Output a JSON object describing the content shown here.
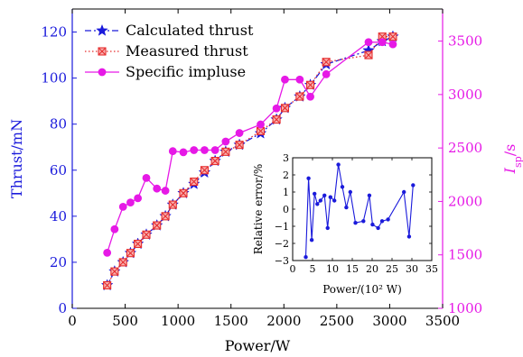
{
  "chart_data": [
    {
      "type": "line",
      "x_axis": {
        "label": "Power/W",
        "range": [
          0,
          3500
        ],
        "ticks": [
          0,
          500,
          1000,
          1500,
          2000,
          2500,
          3000,
          3500
        ]
      },
      "y_axis_left": {
        "label": "Thrust/mN",
        "range": [
          0,
          130
        ],
        "ticks": [
          0,
          20,
          40,
          60,
          80,
          100,
          120
        ],
        "color": "#1a1adb"
      },
      "y_axis_right": {
        "label_main": "I",
        "label_sub": "sp",
        "label_unit": "/s",
        "range": [
          1000,
          3800
        ],
        "ticks": [
          1000,
          1500,
          2000,
          2500,
          3000,
          3500
        ],
        "color": "#e619e6"
      },
      "legend": {
        "position": "top-left",
        "entries": [
          "Calculated thrust",
          "Measured thrust",
          "Specific impluse"
        ]
      },
      "series": [
        {
          "name": "Calculated thrust",
          "axis": "left",
          "color": "#1a1adb",
          "marker": "star",
          "line": "dashdot",
          "x": [
            330,
            400,
            480,
            550,
            620,
            700,
            800,
            880,
            950,
            1050,
            1150,
            1250,
            1350,
            1450,
            1580,
            1780,
            1930,
            2010,
            2150,
            2250,
            2400,
            2800,
            2930,
            3030
          ],
          "y": [
            10,
            16,
            20,
            24,
            28,
            32,
            36,
            40,
            45,
            50,
            54,
            59,
            64,
            68,
            71,
            76,
            82,
            87,
            92,
            97,
            106,
            112,
            116,
            118
          ]
        },
        {
          "name": "Measured thrust",
          "axis": "left",
          "color": "#e62e2e",
          "marker": "boxed-x",
          "line": "dotted",
          "x": [
            330,
            400,
            480,
            550,
            620,
            700,
            800,
            880,
            950,
            1050,
            1150,
            1250,
            1350,
            1450,
            1580,
            1780,
            1930,
            2010,
            2150,
            2250,
            2400,
            2800,
            2930,
            3030
          ],
          "y": [
            10,
            16,
            20,
            24,
            28,
            32,
            36,
            40,
            45,
            50,
            55,
            60,
            64,
            68,
            71,
            77,
            82,
            87,
            92,
            97,
            107,
            110,
            118,
            118
          ]
        },
        {
          "name": "Specific impluse",
          "axis": "right",
          "color": "#e619e6",
          "marker": "circle",
          "line": "solid",
          "x": [
            330,
            400,
            480,
            550,
            620,
            700,
            800,
            880,
            950,
            1050,
            1150,
            1250,
            1350,
            1450,
            1580,
            1780,
            1930,
            2010,
            2150,
            2250,
            2400,
            2800,
            2930,
            3030
          ],
          "y": [
            1520,
            1740,
            1950,
            1990,
            2030,
            2220,
            2120,
            2100,
            2470,
            2460,
            2480,
            2480,
            2480,
            2560,
            2640,
            2720,
            2870,
            3140,
            3140,
            2980,
            3190,
            3490,
            3490,
            3470
          ]
        }
      ]
    },
    {
      "type": "line",
      "inset": true,
      "x_axis": {
        "label": "Power/(10² W)",
        "range": [
          0,
          35
        ],
        "ticks": [
          0,
          5,
          10,
          15,
          20,
          25,
          30,
          35
        ]
      },
      "y_axis": {
        "label": "Relative error/%",
        "range": [
          -3,
          3
        ],
        "ticks": [
          -3,
          -2,
          -1,
          0,
          1,
          2,
          3
        ]
      },
      "series": [
        {
          "color": "#1a1adb",
          "marker": "circle",
          "line": "solid",
          "x": [
            3.3,
            4.0,
            4.8,
            5.5,
            6.2,
            7.0,
            8.0,
            8.8,
            9.5,
            10.5,
            11.5,
            12.5,
            13.5,
            14.5,
            15.8,
            17.8,
            19.3,
            20.1,
            21.5,
            22.5,
            24.0,
            28.0,
            29.3,
            30.3
          ],
          "y": [
            -2.8,
            1.8,
            -1.8,
            0.9,
            0.3,
            0.5,
            0.8,
            -1.1,
            0.7,
            0.5,
            2.6,
            1.3,
            0.1,
            1.0,
            -0.8,
            -0.7,
            0.8,
            -0.9,
            -1.1,
            -0.7,
            -0.6,
            1.0,
            -1.6,
            1.4
          ]
        }
      ]
    }
  ]
}
